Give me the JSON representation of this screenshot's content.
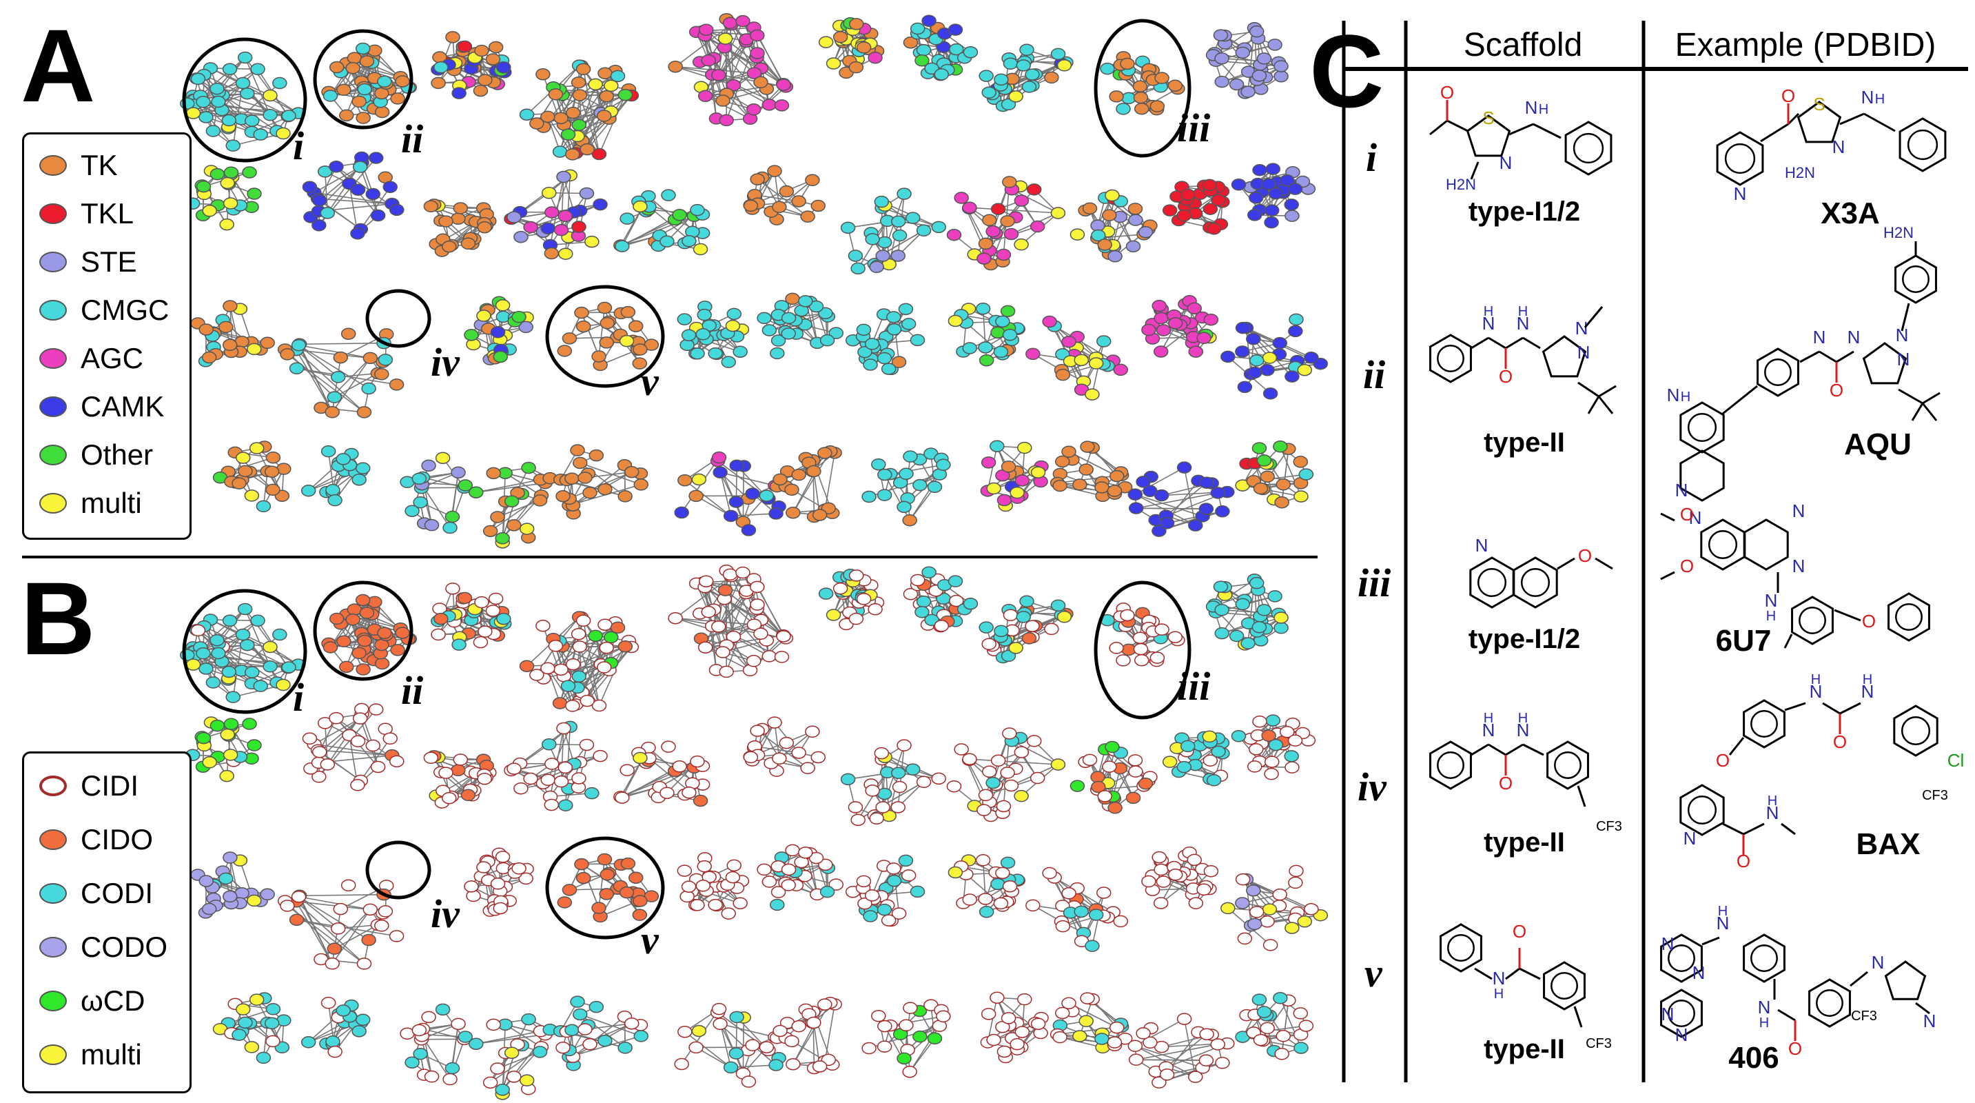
{
  "panel_a": {
    "letter": "A",
    "legend": [
      {
        "label": "TK",
        "color": "#e8893f"
      },
      {
        "label": "TKL",
        "color": "#ec1b2e"
      },
      {
        "label": "STE",
        "color": "#9999e6"
      },
      {
        "label": "CMGC",
        "color": "#46d9dc"
      },
      {
        "label": "AGC",
        "color": "#ec3fbf"
      },
      {
        "label": "CAMK",
        "color": "#3b3be8"
      },
      {
        "label": "Other",
        "color": "#3fdc3a"
      },
      {
        "label": "multi",
        "color": "#f7f43a"
      }
    ],
    "cluster_labels": [
      "i",
      "ii",
      "iii",
      "iv",
      "v"
    ]
  },
  "panel_b": {
    "letter": "B",
    "legend": [
      {
        "label": "CIDI",
        "color": "#ffffff",
        "border": "#a52a2a"
      },
      {
        "label": "CIDO",
        "color": "#f26d3d"
      },
      {
        "label": "CODI",
        "color": "#46d9dc"
      },
      {
        "label": "CODO",
        "color": "#a7a3ea"
      },
      {
        "label": "ωCD",
        "color": "#2fe82a"
      },
      {
        "label": "multi",
        "color": "#f7f43a"
      }
    ],
    "cluster_labels": [
      "i",
      "ii",
      "iii",
      "iv",
      "v"
    ]
  },
  "panel_c": {
    "letter": "C",
    "header_scaffold": "Scaffold",
    "header_example": "Example (PDBID)",
    "rows": [
      {
        "id": "i",
        "scaffold_type": "type-I1/2",
        "example_id": "X3A"
      },
      {
        "id": "ii",
        "scaffold_type": "type-II",
        "example_id": "AQU"
      },
      {
        "id": "iii",
        "scaffold_type": "type-I1/2",
        "example_id": "6U7"
      },
      {
        "id": "iv",
        "scaffold_type": "type-II",
        "example_id": "BAX"
      },
      {
        "id": "v",
        "scaffold_type": "type-II",
        "example_id": "406"
      }
    ],
    "atoms": {
      "S": "S",
      "N": "N",
      "H": "H",
      "O": "O",
      "NH2": "NH2",
      "H2N": "H2N",
      "Cl": "Cl",
      "CF3": "CF3"
    }
  }
}
